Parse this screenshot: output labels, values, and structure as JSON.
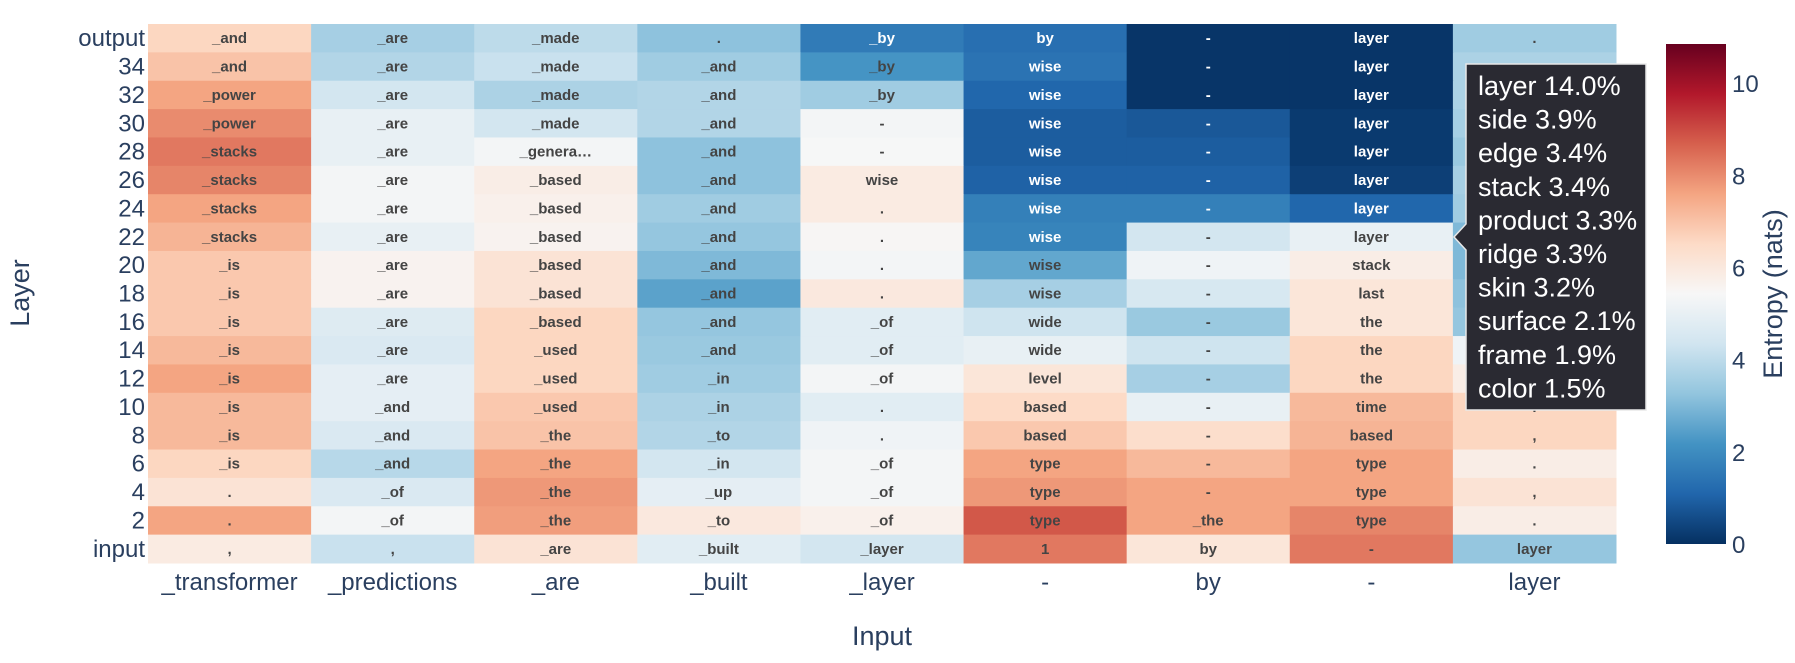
{
  "chart_data": {
    "type": "heatmap",
    "xlabel": "Input",
    "ylabel": "Layer",
    "x_categories": [
      "_transformer",
      "_predictions",
      "_are",
      "_built",
      "_layer",
      "-",
      "by",
      "-",
      "layer"
    ],
    "y_categories": [
      "output",
      "34",
      "32",
      "30",
      "28",
      "26",
      "24",
      "22",
      "20",
      "18",
      "16",
      "14",
      "12",
      "10",
      "8",
      "6",
      "4",
      "2",
      "input"
    ],
    "cell_labels": [
      [
        "_and",
        "_are",
        "_made",
        ".",
        "_by",
        "by",
        "-",
        "layer",
        "."
      ],
      [
        "_and",
        "_are",
        "_made",
        "_and",
        "_by",
        "wise",
        "-",
        "layer",
        "."
      ],
      [
        "_power",
        "_are",
        "_made",
        "_and",
        "_by",
        "wise",
        "-",
        "layer",
        ""
      ],
      [
        "_power",
        "_are",
        "_made",
        "_and",
        "-",
        "wise",
        "-",
        "layer",
        ""
      ],
      [
        "_stacks",
        "_are",
        "_genera…",
        "_and",
        "-",
        "wise",
        "-",
        "layer",
        ""
      ],
      [
        "_stacks",
        "_are",
        "_based",
        "_and",
        "wise",
        "wise",
        "-",
        "layer",
        ""
      ],
      [
        "_stacks",
        "_are",
        "_based",
        "_and",
        ".",
        "wise",
        "-",
        "layer",
        ""
      ],
      [
        "_stacks",
        "_are",
        "_based",
        "_and",
        ".",
        "wise",
        "-",
        "layer",
        ""
      ],
      [
        "_is",
        "_are",
        "_based",
        "_and",
        ".",
        "wise",
        "-",
        "stack",
        ""
      ],
      [
        "_is",
        "_are",
        "_based",
        "_and",
        ".",
        "wise",
        "-",
        "last",
        ""
      ],
      [
        "_is",
        "_are",
        "_based",
        "_and",
        "_of",
        "wide",
        "-",
        "the",
        ""
      ],
      [
        "_is",
        "_are",
        "_used",
        "_and",
        "_of",
        "wide",
        "-",
        "the",
        ""
      ],
      [
        "_is",
        "_are",
        "_used",
        "_in",
        "_of",
        "level",
        "-",
        "the",
        ""
      ],
      [
        "_is",
        "_and",
        "_used",
        "_in",
        ".",
        "based",
        "-",
        "time",
        "."
      ],
      [
        "_is",
        "_and",
        "_the",
        "_to",
        ".",
        "based",
        "-",
        "based",
        ","
      ],
      [
        "_is",
        "_and",
        "_the",
        "_in",
        "_of",
        "type",
        "-",
        "type",
        "."
      ],
      [
        ".",
        "_of",
        "_the",
        "_up",
        "_of",
        "type",
        "-",
        "type",
        ","
      ],
      [
        ".",
        "_of",
        "_the",
        "_to",
        "_of",
        "type",
        "_the",
        "type",
        "."
      ],
      [
        ",",
        ",",
        "_are",
        "_built",
        "_layer",
        "1",
        "by",
        "-",
        "layer"
      ]
    ],
    "values": [
      [
        6.6,
        3.6,
        4.0,
        3.2,
        1.6,
        1.3,
        0.1,
        0.1,
        3.5
      ],
      [
        7.0,
        3.8,
        4.2,
        3.5,
        2.2,
        1.4,
        0.1,
        0.1,
        3.7
      ],
      [
        7.6,
        4.4,
        3.7,
        3.8,
        3.5,
        1.1,
        0.1,
        0.1,
        3.7
      ],
      [
        8.0,
        5.0,
        4.4,
        3.8,
        5.3,
        0.9,
        0.8,
        0.2,
        3.6
      ],
      [
        8.3,
        5.0,
        5.3,
        3.2,
        5.4,
        0.9,
        0.9,
        0.2,
        3.4
      ],
      [
        8.1,
        5.3,
        5.8,
        3.2,
        5.9,
        1.0,
        1.0,
        0.3,
        3.6
      ],
      [
        7.6,
        5.3,
        5.7,
        3.5,
        5.9,
        1.7,
        1.7,
        1.1,
        3.5
      ],
      [
        7.3,
        5.0,
        5.6,
        3.3,
        5.5,
        1.8,
        4.4,
        5.0,
        3.0
      ],
      [
        6.9,
        5.6,
        6.2,
        3.0,
        5.3,
        2.6,
        5.2,
        5.8,
        3.0
      ],
      [
        6.9,
        5.6,
        6.2,
        2.5,
        6.0,
        3.6,
        4.5,
        6.1,
        3.2
      ],
      [
        6.9,
        4.7,
        6.6,
        3.3,
        4.8,
        4.3,
        3.4,
        6.1,
        3.3
      ],
      [
        7.2,
        4.6,
        6.6,
        3.4,
        4.8,
        5.0,
        4.3,
        6.6,
        5.2
      ],
      [
        7.6,
        4.9,
        6.6,
        3.5,
        5.3,
        6.1,
        3.6,
        6.6,
        5.8
      ],
      [
        7.2,
        4.9,
        6.9,
        3.7,
        4.8,
        6.5,
        5.0,
        7.2,
        6.6
      ],
      [
        7.2,
        4.6,
        7.0,
        3.8,
        5.2,
        6.9,
        6.4,
        7.3,
        6.6
      ],
      [
        6.6,
        3.9,
        7.6,
        4.4,
        5.3,
        7.6,
        7.2,
        7.6,
        5.8
      ],
      [
        6.2,
        4.6,
        7.8,
        4.9,
        5.3,
        7.8,
        7.6,
        7.6,
        6.2
      ],
      [
        7.6,
        5.3,
        7.7,
        6.0,
        5.7,
        8.8,
        7.6,
        8.1,
        5.8
      ],
      [
        5.9,
        4.2,
        6.2,
        4.8,
        4.4,
        8.3,
        6.1,
        8.3,
        3.3
      ]
    ],
    "colorscale": [
      "#053061",
      "#2166ac",
      "#4393c3",
      "#92c5de",
      "#d1e5f0",
      "#f7f7f7",
      "#fddbc7",
      "#f4a582",
      "#d6604d",
      "#b2182b",
      "#67001f"
    ],
    "zlim": [
      0,
      10.85
    ],
    "colorbar": {
      "title": "Entropy (nats)",
      "ticks": [
        0,
        2,
        4,
        6,
        8,
        10
      ]
    },
    "tooltip": {
      "lines": [
        "layer 14.0%",
        "side 3.9%",
        "edge 3.4%",
        "stack 3.4%",
        "product 3.3%",
        "ridge 3.3%",
        "skin 3.2%",
        "surface 2.1%",
        "frame 1.9%",
        "color 1.5%"
      ]
    }
  }
}
